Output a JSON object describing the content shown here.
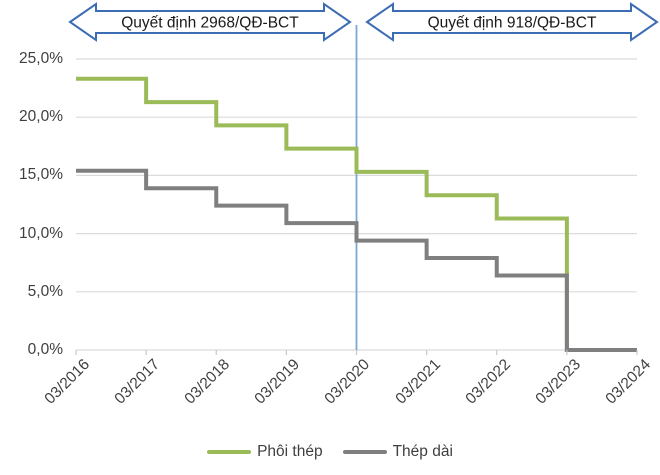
{
  "annotations": {
    "decision_1": "Quyết định 2968/QĐ-BCT",
    "decision_2": "Quyết định 918/QĐ-BCT"
  },
  "chart_data": {
    "type": "line",
    "subtype": "step",
    "categories": [
      "03/2016",
      "03/2017",
      "03/2018",
      "03/2019",
      "03/2020",
      "03/2021",
      "03/2022",
      "03/2023",
      "03/2024"
    ],
    "series": [
      {
        "name": "Phôi thép",
        "color": "#9BBB59",
        "values": [
          23.3,
          21.3,
          19.3,
          17.3,
          15.3,
          13.3,
          11.3,
          0.0,
          0.0
        ]
      },
      {
        "name": "Thép dài",
        "color": "#7F7F7F",
        "values": [
          15.4,
          13.9,
          12.4,
          10.9,
          9.4,
          7.9,
          6.4,
          0.0,
          0.0
        ]
      }
    ],
    "ylim": [
      0,
      25
    ],
    "ytick_values": [
      0,
      5,
      10,
      15,
      20,
      25
    ],
    "ytick_labels": [
      "0,0%",
      "5,0%",
      "10,0%",
      "15,0%",
      "20,0%",
      "25,0%"
    ],
    "grid": true,
    "gridline_color": "#DBDBDB",
    "axis_color": "#C7C7C7",
    "legend_position": "bottom",
    "divider": {
      "at_category": "03/2020",
      "color": "#7AA7D8"
    },
    "annotation_arrows": [
      {
        "label": "Quyết định 2968/QĐ-BCT",
        "from_category": "03/2016",
        "to_category": "03/2020"
      },
      {
        "label": "Quyết định 918/QĐ-BCT",
        "from_category": "03/2020",
        "to_category": "03/2024"
      }
    ],
    "arrow_border_color": "#3C6CB4",
    "arrow_fill_color": "#FFFFFF"
  },
  "legend": {
    "items": [
      {
        "label": "Phôi thép",
        "color": "#9BBB59"
      },
      {
        "label": "Thép dài",
        "color": "#7F7F7F"
      }
    ]
  }
}
